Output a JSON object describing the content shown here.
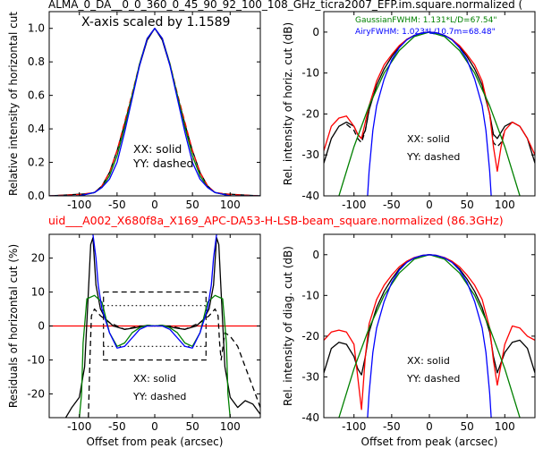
{
  "top_title": "ALMA_0_DA__0_0_360_0_45_90_92_100_108_GHz_ticra2007_EFP.im.square.normalized (",
  "mid_title": "uid___A002_X680f8a_X169_APC-DA53-H-LSB-beam_square.normalized (86.3GHz)",
  "colors": {
    "xx": "#000000",
    "yy": "#000000",
    "red": "#ff0000",
    "gaussian": "#008000",
    "airy": "#0000ff",
    "mid_title": "#ff0000"
  },
  "chart_data": [
    {
      "type": "line",
      "panel": "top-left",
      "annotation": "X-axis scaled by 1.1589",
      "xlabel": "",
      "ylabel": "Relative intensity of horizontal cut",
      "xlim": [
        -140,
        140
      ],
      "ylim": [
        0,
        1.1
      ],
      "xticks": [
        -100,
        -50,
        0,
        50,
        100
      ],
      "yticks": [
        0.0,
        0.2,
        0.4,
        0.6,
        0.8,
        1.0
      ],
      "ytick_labels": [
        "0.0",
        "0.2",
        "0.4",
        "0.6",
        "0.8",
        "1.0"
      ],
      "legend_text": [
        "XX: solid",
        "YY: dashed"
      ],
      "series": [
        {
          "color": "#000000",
          "style": "solid",
          "x": [
            -140,
            -120,
            -100,
            -90,
            -80,
            -70,
            -60,
            -50,
            -40,
            -30,
            -20,
            -10,
            0,
            10,
            20,
            30,
            40,
            50,
            60,
            70,
            80,
            90,
            100,
            120,
            140
          ],
          "y": [
            0.0,
            0.005,
            0.01,
            0.012,
            0.02,
            0.06,
            0.14,
            0.27,
            0.43,
            0.6,
            0.78,
            0.93,
            1.0,
            0.93,
            0.78,
            0.6,
            0.43,
            0.27,
            0.14,
            0.06,
            0.02,
            0.012,
            0.01,
            0.005,
            0.0
          ]
        },
        {
          "color": "#ff0000",
          "style": "dashed",
          "x": [
            -140,
            -120,
            -100,
            -80,
            -70,
            -60,
            -50,
            -40,
            -30,
            -20,
            -10,
            0,
            10,
            20,
            30,
            40,
            50,
            60,
            70,
            80,
            100,
            120,
            140
          ],
          "y": [
            0.0,
            0.004,
            0.008,
            0.02,
            0.06,
            0.14,
            0.27,
            0.44,
            0.61,
            0.79,
            0.94,
            1.0,
            0.94,
            0.79,
            0.61,
            0.44,
            0.27,
            0.14,
            0.06,
            0.02,
            0.008,
            0.004,
            0.0
          ]
        },
        {
          "color": "#008000",
          "style": "solid",
          "x": [
            -140,
            -100,
            -80,
            -70,
            -60,
            -50,
            -40,
            -30,
            -20,
            -10,
            0,
            10,
            20,
            30,
            40,
            50,
            60,
            70,
            80,
            100,
            140
          ],
          "y": [
            0.0,
            0.0,
            0.02,
            0.05,
            0.12,
            0.24,
            0.41,
            0.6,
            0.79,
            0.94,
            1.0,
            0.94,
            0.79,
            0.6,
            0.41,
            0.24,
            0.12,
            0.05,
            0.02,
            0.0,
            0.0
          ]
        },
        {
          "color": "#0000ff",
          "style": "solid",
          "x": [
            -140,
            -100,
            -80,
            -70,
            -60,
            -50,
            -40,
            -30,
            -20,
            -10,
            0,
            10,
            20,
            30,
            40,
            50,
            60,
            70,
            80,
            100,
            140
          ],
          "y": [
            0.0,
            0.0,
            0.02,
            0.05,
            0.1,
            0.2,
            0.38,
            0.58,
            0.78,
            0.94,
            1.0,
            0.94,
            0.78,
            0.58,
            0.38,
            0.2,
            0.1,
            0.05,
            0.02,
            0.0,
            0.0
          ]
        }
      ]
    },
    {
      "type": "line",
      "panel": "top-right",
      "xlabel": "",
      "ylabel": "Rel. intensity of horiz. cut (dB)",
      "xlim": [
        -140,
        140
      ],
      "ylim": [
        -40,
        5
      ],
      "xticks": [
        -100,
        -50,
        0,
        50,
        100
      ],
      "yticks": [
        -40,
        -30,
        -20,
        -10,
        0
      ],
      "legend_text": [
        "XX: solid",
        "YY: dashed"
      ],
      "legend_entries": [
        "GaussianFWHM: 1.131*L/D=67.54\"",
        "AiryFWHM: 1.023*L/10.7m=68.48\""
      ],
      "series": [
        {
          "color": "#000000",
          "style": "solid",
          "x": [
            -140,
            -130,
            -120,
            -110,
            -100,
            -95,
            -90,
            -85,
            -80,
            -70,
            -60,
            -50,
            -40,
            -30,
            -20,
            -10,
            0,
            10,
            20,
            30,
            40,
            50,
            60,
            70,
            80,
            85,
            90,
            100,
            110,
            120,
            130,
            140
          ],
          "y": [
            -32,
            -26,
            -23,
            -22,
            -23,
            -25,
            -26,
            -24,
            -19,
            -13,
            -9,
            -6,
            -3.5,
            -1.8,
            -0.8,
            -0.2,
            0,
            -0.2,
            -0.8,
            -1.8,
            -3.5,
            -6,
            -9,
            -13,
            -20,
            -25,
            -26,
            -23,
            -22,
            -23,
            -26,
            -32
          ]
        },
        {
          "color": "#000000",
          "style": "dashed",
          "x": [
            -110,
            -100,
            -95,
            -90,
            -85,
            -80
          ],
          "y": [
            -22.5,
            -24,
            -26,
            -27,
            -24,
            -19
          ]
        },
        {
          "color": "#000000",
          "style": "dashed",
          "x": [
            80,
            85,
            90,
            95,
            100
          ],
          "y": [
            -20,
            -27,
            -28,
            -27,
            -24
          ]
        },
        {
          "color": "#ff0000",
          "style": "solid",
          "x": [
            -140,
            -130,
            -120,
            -110,
            -100,
            -95,
            -90,
            -85,
            -80,
            -70,
            -60,
            -50,
            -40,
            -30,
            -20,
            -10,
            0,
            10,
            20,
            30,
            40,
            50,
            60,
            70,
            80,
            85,
            90,
            95,
            100,
            110,
            120,
            130,
            140
          ],
          "y": [
            -29,
            -23,
            -21,
            -20.5,
            -23,
            -25,
            -26,
            -22,
            -18,
            -12,
            -8,
            -5.5,
            -3.3,
            -1.8,
            -0.8,
            -0.2,
            0,
            -0.2,
            -0.8,
            -1.8,
            -3.3,
            -5.5,
            -8,
            -12,
            -20,
            -28,
            -34,
            -28,
            -24,
            -22,
            -23,
            -26,
            -30
          ]
        },
        {
          "color": "#008000",
          "style": "solid",
          "x": [
            -140,
            -120,
            -100,
            -80,
            -60,
            -40,
            -20,
            0,
            20,
            40,
            60,
            80,
            100,
            120,
            140
          ],
          "y": [
            -53,
            -40,
            -28,
            -18,
            -10,
            -4.5,
            -1.1,
            0,
            -1.1,
            -4.5,
            -10,
            -18,
            -28,
            -40,
            -53
          ]
        },
        {
          "color": "#0000ff",
          "style": "solid",
          "x": [
            -82,
            -80,
            -75,
            -70,
            -60,
            -50,
            -40,
            -30,
            -20,
            -10,
            0,
            10,
            20,
            30,
            40,
            50,
            60,
            70,
            75,
            80,
            82
          ],
          "y": [
            -40,
            -34,
            -24,
            -18,
            -11.5,
            -6.8,
            -3.8,
            -1.9,
            -0.8,
            -0.2,
            0,
            -0.2,
            -0.8,
            -1.9,
            -3.8,
            -6.8,
            -11.5,
            -18,
            -24,
            -34,
            -40
          ]
        }
      ]
    },
    {
      "type": "line",
      "panel": "bottom-left",
      "xlabel": "Offset from peak (arcsec)",
      "ylabel": "Residuals of horizontal cut (%)",
      "xlim": [
        -140,
        140
      ],
      "ylim": [
        -27,
        27
      ],
      "xticks": [
        -100,
        -50,
        0,
        50,
        100
      ],
      "yticks": [
        -20,
        -10,
        0,
        10,
        20
      ],
      "legend_text": [
        "XX: solid",
        "YY: dashed"
      ],
      "series": [
        {
          "color": "#ff0000",
          "style": "solid",
          "x": [
            -140,
            140
          ],
          "y": [
            0,
            0
          ]
        },
        {
          "color": "#000000",
          "style": "solid",
          "x": [
            -118,
            -110,
            -100,
            -93,
            -88,
            -85,
            -82,
            -78,
            -72,
            -65,
            -55,
            -40,
            -25,
            -10,
            0,
            10,
            25,
            40,
            55,
            65,
            72,
            78,
            82,
            85,
            88,
            93,
            100,
            110,
            120,
            130,
            140
          ],
          "y": [
            -27,
            -24,
            -21,
            -12,
            10,
            24,
            26,
            12,
            5,
            2,
            0,
            -1,
            -0.5,
            0.2,
            0,
            0.2,
            -0.5,
            -1,
            0,
            2,
            5,
            12,
            26,
            24,
            10,
            -12,
            -21,
            -24,
            -22,
            -23,
            -26
          ]
        },
        {
          "color": "#000000",
          "style": "dashed",
          "x": [
            -88,
            -86,
            -84,
            -80,
            -72,
            -60,
            -40,
            -20,
            0,
            20,
            40,
            60,
            72,
            80,
            84,
            86,
            88,
            93,
            100,
            110,
            120,
            130,
            140
          ],
          "y": [
            -27,
            -10,
            3,
            5,
            3,
            1,
            -1,
            0,
            0,
            0,
            -1,
            1,
            3,
            5,
            3,
            -5,
            -10,
            -2,
            -3,
            -6,
            -12,
            -18,
            -24
          ]
        },
        {
          "color": "#008000",
          "style": "solid",
          "x": [
            -100,
            -97,
            -95,
            -90,
            -80,
            -70,
            -60,
            -50,
            -40,
            -30,
            -20,
            -10,
            0,
            10,
            20,
            30,
            40,
            50,
            60,
            70,
            80,
            90,
            95,
            97,
            100
          ],
          "y": [
            -27,
            -20,
            -5,
            8,
            9,
            7,
            -2,
            -6,
            -5,
            -2,
            -0.5,
            0.2,
            0,
            0.2,
            -0.5,
            -2,
            -5,
            -6,
            -2,
            7,
            9,
            8,
            -5,
            -20,
            -27
          ]
        },
        {
          "color": "#0000ff",
          "style": "solid",
          "x": [
            -82,
            -78,
            -75,
            -70,
            -60,
            -50,
            -40,
            -30,
            -20,
            -10,
            0,
            10,
            20,
            30,
            40,
            50,
            60,
            70,
            75,
            78,
            82
          ],
          "y": [
            27,
            20,
            12,
            5,
            -2,
            -6.5,
            -6,
            -3.5,
            -1,
            0,
            0,
            0,
            -1,
            -3.5,
            -6,
            -6.5,
            -2,
            5,
            12,
            20,
            27
          ]
        }
      ],
      "reference_lines": [
        {
          "style": "dashed",
          "x": [
            -68,
            68,
            68,
            -68,
            -68
          ],
          "y": [
            10,
            10,
            -10,
            -10,
            10
          ]
        },
        {
          "style": "dotted",
          "x": [
            -68,
            68
          ],
          "y": [
            6,
            6
          ]
        },
        {
          "style": "dotted",
          "x": [
            -68,
            68
          ],
          "y": [
            -6,
            -6
          ]
        }
      ]
    },
    {
      "type": "line",
      "panel": "bottom-right",
      "xlabel": "Offset from peak (arcsec)",
      "ylabel": "Rel. intensity of diag. cut (dB)",
      "xlim": [
        -140,
        140
      ],
      "ylim": [
        -40,
        5
      ],
      "xticks": [
        -100,
        -50,
        0,
        50,
        100
      ],
      "yticks": [
        -40,
        -30,
        -20,
        -10,
        0
      ],
      "legend_text": [
        "XX: solid",
        "YY: dashed"
      ],
      "series": [
        {
          "color": "#000000",
          "style": "solid",
          "x": [
            -140,
            -130,
            -120,
            -110,
            -100,
            -95,
            -90,
            -85,
            -80,
            -70,
            -60,
            -50,
            -40,
            -30,
            -20,
            -10,
            0,
            10,
            20,
            30,
            40,
            50,
            60,
            70,
            80,
            85,
            90,
            100,
            110,
            120,
            130,
            140
          ],
          "y": [
            -29,
            -23,
            -21.5,
            -22,
            -25,
            -28,
            -29.5,
            -25,
            -19,
            -13,
            -9,
            -6,
            -3.5,
            -1.8,
            -0.8,
            -0.2,
            0,
            -0.2,
            -0.8,
            -1.8,
            -3.5,
            -6,
            -9,
            -13,
            -19,
            -25,
            -29,
            -24,
            -21.5,
            -21,
            -23,
            -29
          ]
        },
        {
          "color": "#ff0000",
          "style": "solid",
          "x": [
            -140,
            -130,
            -120,
            -110,
            -100,
            -95,
            -90,
            -85,
            -80,
            -70,
            -60,
            -50,
            -40,
            -30,
            -20,
            -10,
            0,
            10,
            20,
            30,
            40,
            50,
            60,
            70,
            80,
            85,
            90,
            100,
            110,
            120,
            130,
            140
          ],
          "y": [
            -21,
            -19,
            -18.5,
            -19,
            -22,
            -30,
            -38,
            -25,
            -17,
            -11,
            -7.5,
            -5,
            -3,
            -1.6,
            -0.7,
            -0.2,
            0,
            -0.2,
            -0.7,
            -1.6,
            -3,
            -5,
            -7.5,
            -11,
            -18,
            -26,
            -32,
            -22,
            -17.5,
            -18,
            -20,
            -21
          ]
        },
        {
          "color": "#008000",
          "style": "solid",
          "x": [
            -140,
            -120,
            -100,
            -80,
            -60,
            -40,
            -20,
            0,
            20,
            40,
            60,
            80,
            100,
            120,
            140
          ],
          "y": [
            -53,
            -40,
            -28,
            -18,
            -10,
            -4.5,
            -1.1,
            0,
            -1.1,
            -4.5,
            -10,
            -18,
            -28,
            -40,
            -53
          ]
        },
        {
          "color": "#0000ff",
          "style": "solid",
          "x": [
            -82,
            -80,
            -75,
            -70,
            -60,
            -50,
            -40,
            -30,
            -20,
            -10,
            0,
            10,
            20,
            30,
            40,
            50,
            60,
            70,
            75,
            80,
            82
          ],
          "y": [
            -40,
            -34,
            -24,
            -18,
            -11.5,
            -6.8,
            -3.8,
            -1.9,
            -0.8,
            -0.2,
            0,
            -0.2,
            -0.8,
            -1.9,
            -3.8,
            -6.8,
            -11.5,
            -18,
            -24,
            -34,
            -40
          ]
        }
      ]
    }
  ]
}
